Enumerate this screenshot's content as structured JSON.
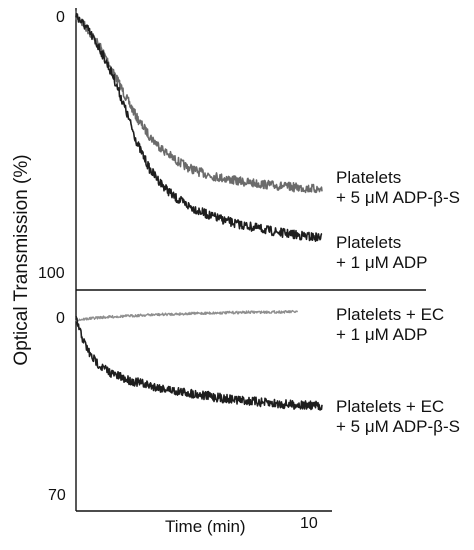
{
  "chart_data": [
    {
      "type": "line",
      "panel": "top",
      "ylabel": "Optical Transmission (%)",
      "y_ticks": [
        "0",
        "100"
      ],
      "ylim": [
        0,
        100
      ],
      "y_inverted": true,
      "x": [
        0,
        0.5,
        1,
        1.5,
        2,
        2.5,
        3,
        3.5,
        4,
        4.5,
        5,
        5.5,
        6,
        6.5,
        7,
        7.5,
        8,
        8.5,
        9,
        9.5,
        10
      ],
      "series": [
        {
          "name": "Platelets + 5 μM ADP-β-S",
          "label_lines": [
            "Platelets",
            "+ 5 μM ADP-β-S"
          ],
          "color": "#6b6b6b",
          "values": [
            0,
            6,
            13,
            22,
            32,
            41,
            48,
            53,
            57,
            60,
            62,
            63.5,
            64.5,
            65.5,
            66.2,
            66.8,
            67.3,
            67.8,
            68.2,
            68.6,
            69
          ]
        },
        {
          "name": "Platelets + 1 μM ADP",
          "label_lines": [
            "Platelets",
            "+ 1 μM ADP"
          ],
          "color": "#1e1e1e",
          "values": [
            0,
            6,
            14,
            24,
            37,
            51,
            61,
            67,
            72,
            75,
            77.5,
            79.5,
            81,
            82.5,
            83.5,
            84.5,
            85.5,
            86.3,
            87,
            87.6,
            88
          ]
        }
      ]
    },
    {
      "type": "line",
      "panel": "bottom",
      "y_ticks": [
        "0",
        "70"
      ],
      "ylim": [
        0,
        70
      ],
      "y_inverted": true,
      "xlabel": "Time (min)",
      "x_ticks": [
        "10"
      ],
      "xlim": [
        0,
        10
      ],
      "series": [
        {
          "name": "Platelets + EC + 1 μM ADP",
          "label_lines": [
            "Platelets + EC",
            "+ 1 μM ADP"
          ],
          "color": "#8f8f8f",
          "x": [
            0,
            0.5,
            1,
            2,
            3,
            4,
            5,
            6,
            7,
            8,
            9
          ],
          "values": [
            0,
            -0.5,
            -1,
            -1.5,
            -2,
            -2.3,
            -2.6,
            -2.8,
            -3,
            -3.1,
            -3.2
          ]
        },
        {
          "name": "Platelets + EC + 5 μM ADP-β-S",
          "label_lines": [
            "Platelets + EC",
            "+ 5 μM ADP-β-S"
          ],
          "color": "#1e1e1e",
          "x": [
            0,
            0.3,
            0.6,
            1,
            1.5,
            2,
            3,
            4,
            5,
            6,
            7,
            8,
            9,
            10
          ],
          "values": [
            0,
            8,
            14,
            18,
            21,
            23,
            25.5,
            27.5,
            29,
            30.5,
            31.5,
            32.5,
            33,
            33.5
          ]
        }
      ]
    }
  ]
}
